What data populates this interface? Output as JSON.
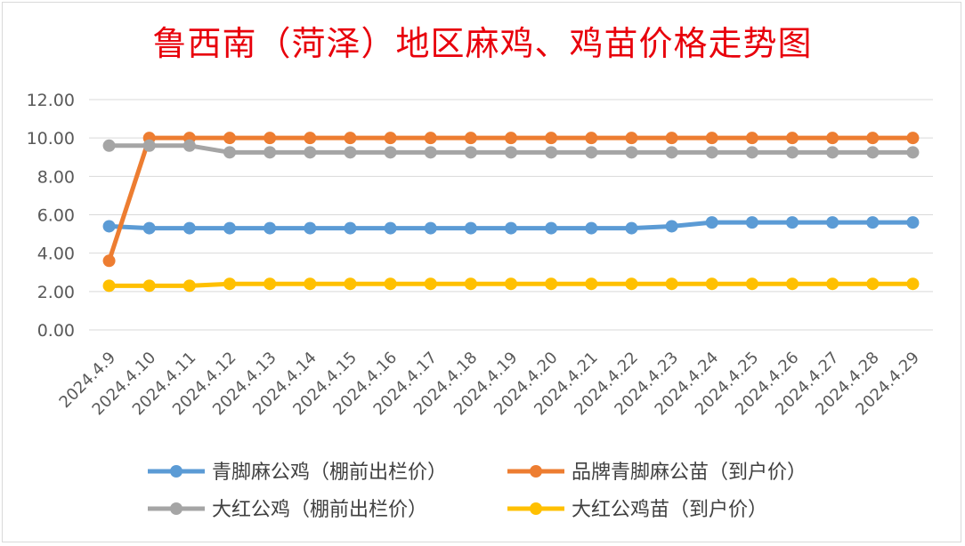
{
  "chart_data": {
    "type": "line",
    "title": "鲁西南（菏泽）地区麻鸡、鸡苗价格走势图",
    "categories": [
      "2024.4.9",
      "2024.4.10",
      "2024.4.11",
      "2024.4.12",
      "2024.4.13",
      "2024.4.14",
      "2024.4.15",
      "2024.4.16",
      "2024.4.17",
      "2024.4.18",
      "2024.4.19",
      "2024.4.20",
      "2024.4.21",
      "2024.4.22",
      "2024.4.23",
      "2024.4.24",
      "2024.4.25",
      "2024.4.26",
      "2024.4.27",
      "2024.4.28",
      "2024.4.29"
    ],
    "ylim": [
      0,
      12
    ],
    "yticks": [
      "0.00",
      "2.00",
      "4.00",
      "6.00",
      "8.00",
      "10.00",
      "12.00"
    ],
    "grid": true,
    "legend_position": "bottom",
    "series": [
      {
        "name": "青脚麻公鸡（棚前出栏价）",
        "color": "#5b9bd5",
        "values": [
          5.4,
          5.3,
          5.3,
          5.3,
          5.3,
          5.3,
          5.3,
          5.3,
          5.3,
          5.3,
          5.3,
          5.3,
          5.3,
          5.3,
          5.4,
          5.6,
          5.6,
          5.6,
          5.6,
          5.6,
          5.6
        ]
      },
      {
        "name": "品牌青脚麻公苗（到户价）",
        "color": "#ed7d31",
        "values": [
          3.6,
          10,
          10,
          10,
          10,
          10,
          10,
          10,
          10,
          10,
          10,
          10,
          10,
          10,
          10,
          10,
          10,
          10,
          10,
          10,
          10
        ]
      },
      {
        "name": "大红公鸡（棚前出栏价）",
        "color": "#a5a5a5",
        "values": [
          9.6,
          9.6,
          9.6,
          9.25,
          9.25,
          9.25,
          9.25,
          9.25,
          9.25,
          9.25,
          9.25,
          9.25,
          9.25,
          9.25,
          9.25,
          9.25,
          9.25,
          9.25,
          9.25,
          9.25,
          9.25
        ]
      },
      {
        "name": "大红公鸡苗（到户价）",
        "color": "#ffc000",
        "values": [
          2.3,
          2.3,
          2.3,
          2.4,
          2.4,
          2.4,
          2.4,
          2.4,
          2.4,
          2.4,
          2.4,
          2.4,
          2.4,
          2.4,
          2.4,
          2.4,
          2.4,
          2.4,
          2.4,
          2.4,
          2.4
        ]
      }
    ]
  }
}
